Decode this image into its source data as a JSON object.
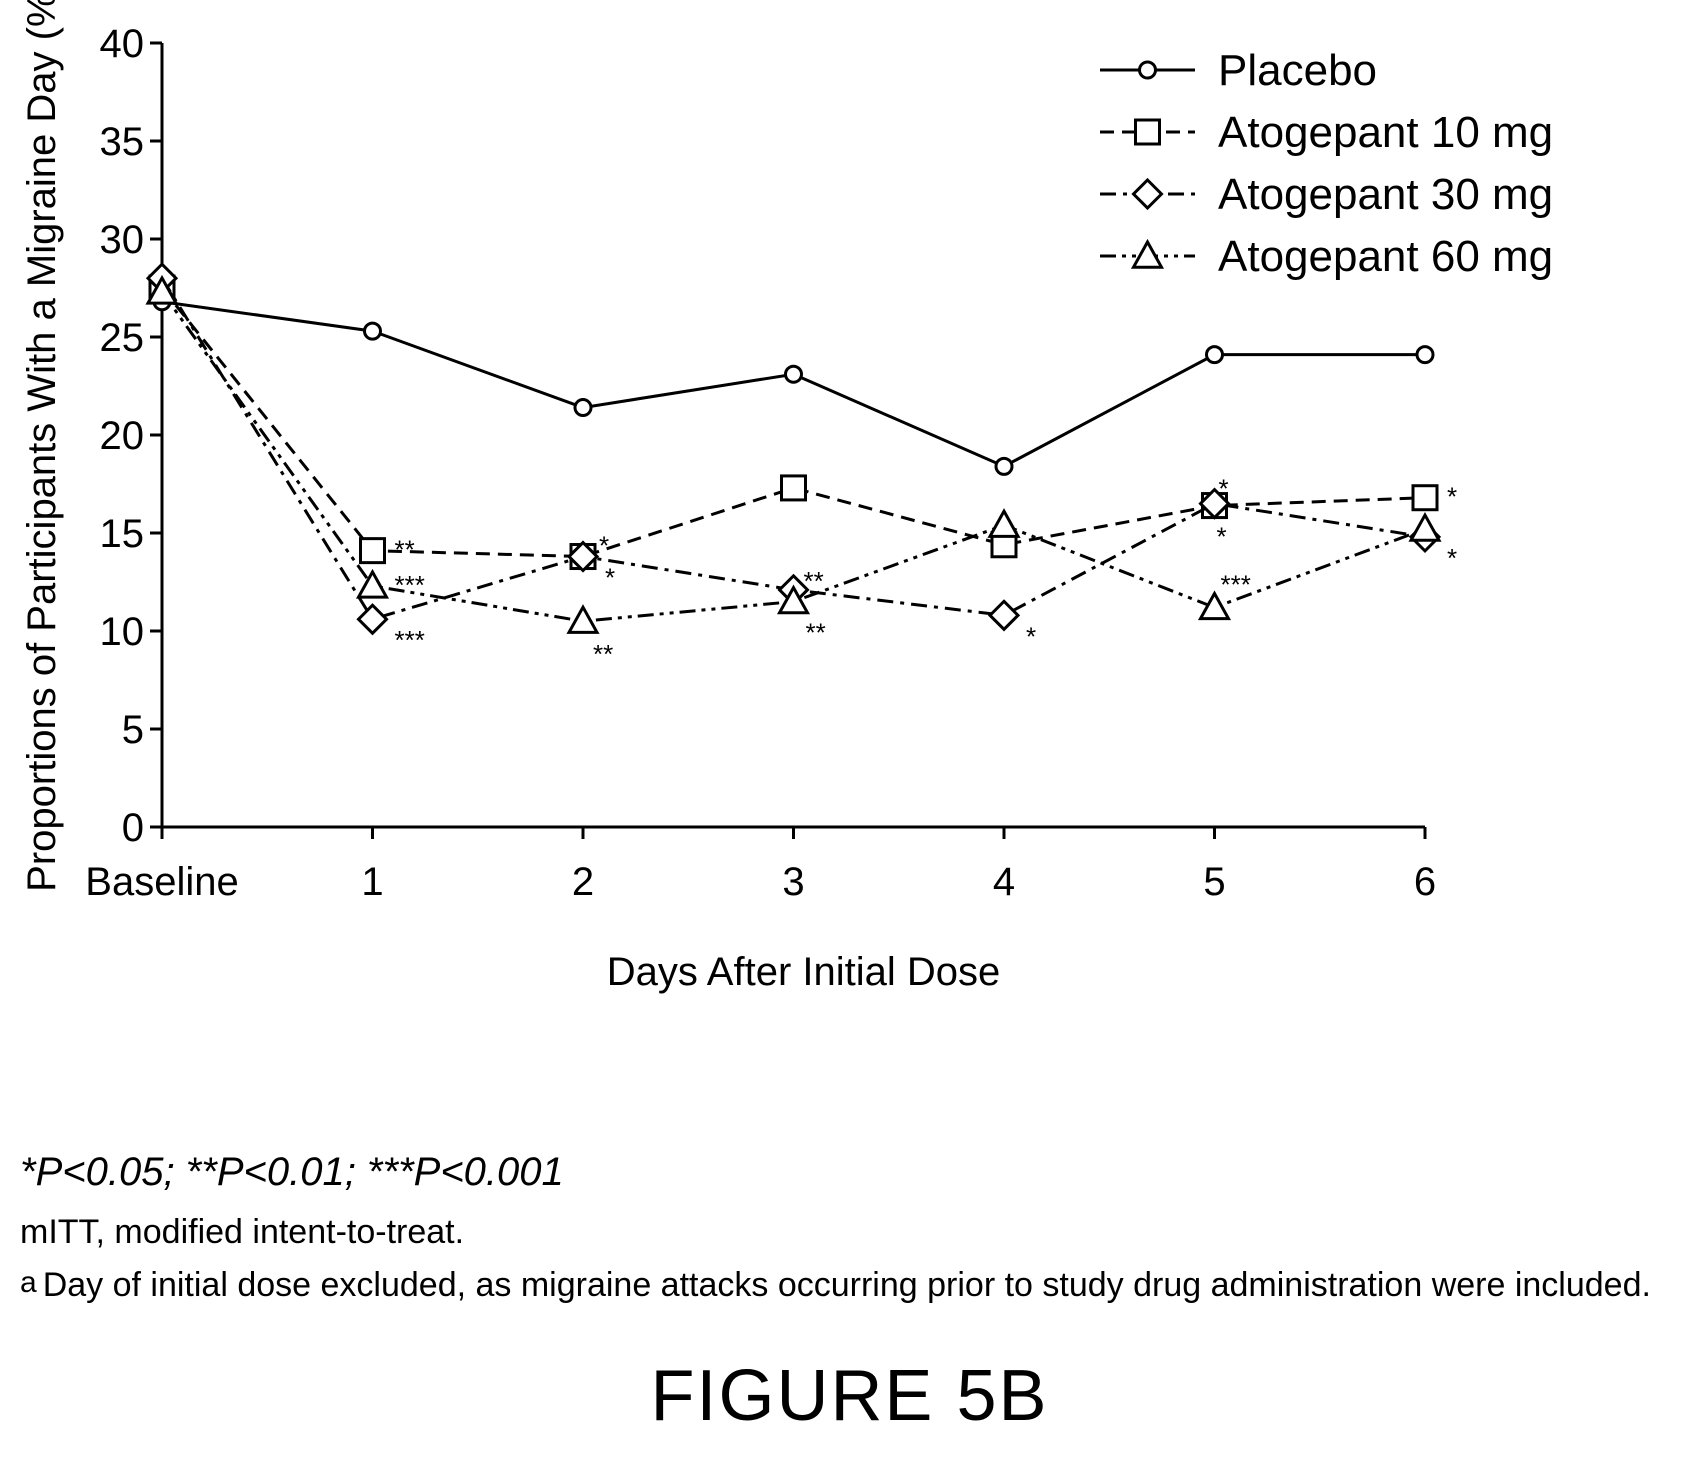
{
  "chart_data": {
    "type": "line",
    "title": "",
    "xlabel": "Days After Initial Dose",
    "ylabel": "Proportions of Participants With a Migraine Day (%)",
    "categories": [
      "Baseline",
      "1",
      "2",
      "3",
      "4",
      "5",
      "6"
    ],
    "ylim": [
      0,
      40
    ],
    "yticks": [
      "0",
      "5",
      "10",
      "15",
      "20",
      "25",
      "30",
      "35",
      "40"
    ],
    "grid": false,
    "legend_position": "top-right",
    "series": [
      {
        "name": "Placebo",
        "marker": "circle",
        "dash": "solid",
        "values": [
          26.8,
          25.3,
          21.4,
          23.1,
          18.4,
          24.1,
          24.1
        ],
        "significance": [
          "",
          "",
          "",
          "",
          "",
          "",
          ""
        ]
      },
      {
        "name": "Atogepant 10 mg",
        "marker": "square",
        "dash": "dashed",
        "values": [
          27.5,
          14.1,
          13.8,
          17.3,
          14.4,
          16.4,
          16.8
        ],
        "significance": [
          "",
          "**",
          "*",
          "",
          "",
          "*",
          "*"
        ]
      },
      {
        "name": "Atogepant 30 mg",
        "marker": "diamond",
        "dash": "dashdot",
        "values": [
          28.0,
          10.6,
          13.8,
          12.1,
          10.8,
          16.5,
          14.8
        ],
        "significance": [
          "",
          "***",
          "*",
          "**",
          "*",
          "*",
          "*"
        ]
      },
      {
        "name": "Atogepant 60 mg",
        "marker": "triangle",
        "dash": "dashdotdot",
        "values": [
          27.3,
          12.3,
          10.5,
          11.5,
          15.4,
          11.2,
          15.2
        ],
        "significance": [
          "",
          "***",
          "**",
          "**",
          "",
          "***",
          ""
        ]
      }
    ]
  },
  "footnotes": {
    "significance": "*P<0.05; **P<0.01; ***P<0.001",
    "abbrev": "mITT, modified intent-to-treat.",
    "note_letter": "a",
    "note": "Day of initial dose excluded, as migraine attacks occurring prior to study drug administration were included."
  },
  "figure_label": "FIGURE 5B"
}
